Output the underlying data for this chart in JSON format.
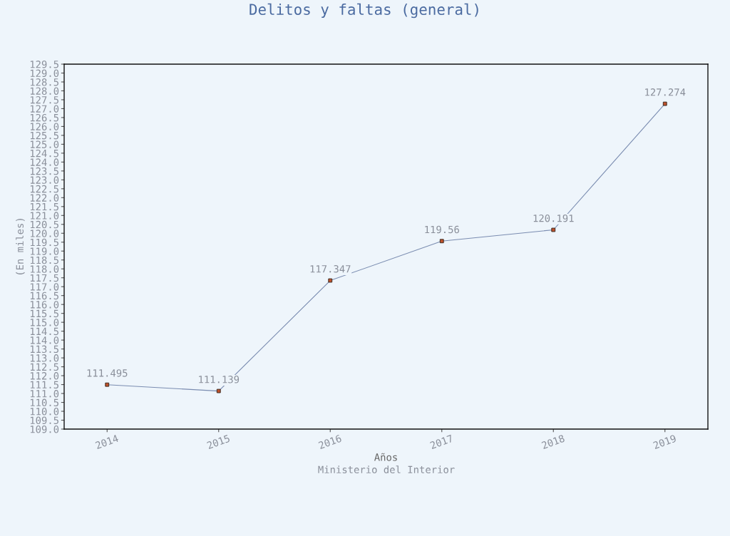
{
  "chart_data": {
    "type": "line",
    "title": "Delitos y faltas (general)",
    "xlabel": "Años",
    "ylabel": "(En miles)",
    "annotations": [
      "Ministerio del Interior"
    ],
    "categories": [
      "2014",
      "2015",
      "2016",
      "2017",
      "2018",
      "2019"
    ],
    "series": [
      {
        "color": "#7a8cb0",
        "values": [
          111.495,
          111.139,
          117.347,
          119.56,
          120.191,
          127.274
        ]
      }
    ],
    "data_labels": true,
    "marker": "square",
    "line_style": "solid",
    "grid": false,
    "ylim": [
      109.0,
      129.5
    ],
    "yticks": [
      {
        "value": 109,
        "label": "109.0"
      },
      109.5,
      {
        "value": 110,
        "label": "110.0"
      },
      110.5,
      {
        "value": 111,
        "label": "111.0"
      },
      111.5,
      {
        "value": 112,
        "label": "112.0"
      },
      112.5,
      {
        "value": 113,
        "label": "113.0"
      },
      113.5,
      {
        "value": 114,
        "label": "114.0"
      },
      114.5,
      {
        "value": 115,
        "label": "115.0"
      },
      115.5,
      {
        "value": 116,
        "label": "116.0"
      },
      116.5,
      {
        "value": 117,
        "label": "117.0"
      },
      117.5,
      {
        "value": 118,
        "label": "118.0"
      },
      118.5,
      {
        "value": 119,
        "label": "119.0"
      },
      119.5,
      {
        "value": 120,
        "label": "120.0"
      },
      120.5,
      {
        "value": 121,
        "label": "121.0"
      },
      121.5,
      {
        "value": 122,
        "label": "122.0"
      },
      122.5,
      {
        "value": 123,
        "label": "123.0"
      },
      123.5,
      {
        "value": 124,
        "label": "124.0"
      },
      124.5,
      {
        "value": 125,
        "label": "125.0"
      },
      125.5,
      {
        "value": 126,
        "label": "126.0"
      },
      126.5,
      {
        "value": 127,
        "label": "127.0"
      },
      127.5,
      {
        "value": 128,
        "label": "128.0"
      },
      128.5,
      {
        "value": 129,
        "label": "129.0"
      },
      129.5
    ]
  }
}
